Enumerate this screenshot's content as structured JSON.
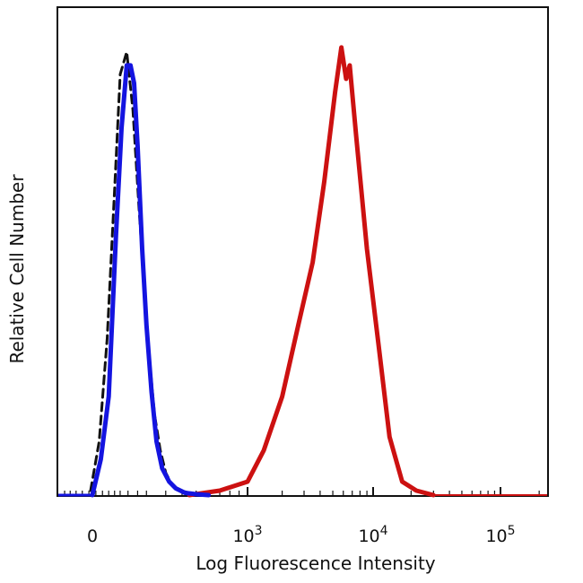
{
  "chart_data": {
    "type": "line",
    "title": "",
    "xlabel": "Log Fluorescence Intensity",
    "ylabel": "Relative Cell Number",
    "x_scale": "biexponential",
    "xlim": [
      -100,
      300000
    ],
    "ylim": [
      0,
      1.09
    ],
    "grid": false,
    "legend": "none",
    "x_ticks": [
      {
        "value": 0,
        "base": "0",
        "exp": ""
      },
      {
        "value": 1000,
        "base": "10",
        "exp": "3"
      },
      {
        "value": 10000,
        "base": "10",
        "exp": "4"
      },
      {
        "value": 100000,
        "base": "10",
        "exp": "5"
      }
    ],
    "series": [
      {
        "style": "dashed",
        "color": "#111111",
        "x": [
          -5,
          20,
          45,
          70,
          90,
          115,
          140,
          165,
          190,
          215,
          240,
          270,
          300,
          340,
          390,
          450,
          560
        ],
        "y": [
          0.01,
          0.12,
          0.35,
          0.68,
          0.94,
          0.99,
          0.86,
          0.65,
          0.46,
          0.3,
          0.18,
          0.1,
          0.05,
          0.02,
          0.01,
          0.005,
          0
        ]
      },
      {
        "style": "solid",
        "color": "#1414e0",
        "x": [
          0,
          25,
          50,
          75,
          95,
          115,
          130,
          145,
          160,
          180,
          200,
          225,
          250,
          280,
          320,
          360,
          420,
          500,
          600
        ],
        "y": [
          0.0,
          0.08,
          0.22,
          0.58,
          0.82,
          0.96,
          0.96,
          0.92,
          0.78,
          0.55,
          0.38,
          0.23,
          0.12,
          0.06,
          0.03,
          0.015,
          0.005,
          0.002,
          0
        ]
      },
      {
        "style": "solid",
        "color": "#cc1111",
        "x": [
          450,
          700,
          1000,
          1400,
          2000,
          2700,
          3500,
          4300,
          5200,
          5800,
          6300,
          6700,
          7500,
          9000,
          11000,
          13500,
          17000,
          22000,
          30000
        ],
        "y": [
          0,
          0.01,
          0.03,
          0.1,
          0.22,
          0.38,
          0.52,
          0.7,
          0.9,
          1.0,
          0.93,
          0.96,
          0.8,
          0.55,
          0.34,
          0.13,
          0.03,
          0.01,
          0
        ]
      }
    ]
  }
}
